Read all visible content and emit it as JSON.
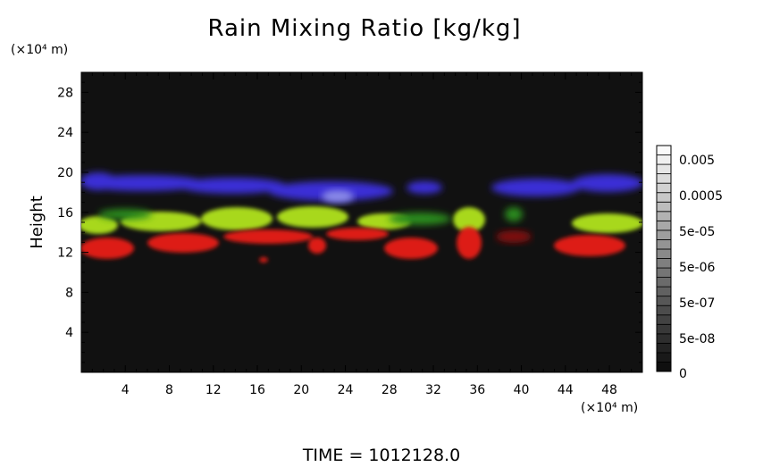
{
  "chart_data": {
    "type": "heatmap",
    "title": "Rain Mixing Ratio [kg/kg]",
    "ylabel": "Height",
    "xunit": "(×10⁴ m)",
    "yunit": "(×10⁴ m)",
    "xlim": [
      0,
      51
    ],
    "ylim": [
      0,
      30
    ],
    "xticks": [
      4,
      8,
      12,
      16,
      20,
      24,
      28,
      32,
      36,
      40,
      44,
      48
    ],
    "yticks": [
      4,
      8,
      12,
      16,
      20,
      24,
      28
    ],
    "colorbar": {
      "labels": [
        "0.005",
        "0.0005",
        "5e-05",
        "5e-06",
        "5e-07",
        "5e-08",
        "0"
      ],
      "levels": 24,
      "colors": {
        "bottom": "#000000",
        "top": "#ffffff"
      }
    },
    "background_color": "#111111",
    "layers": [
      {
        "color": "#3a30d8",
        "y_range": [
          17,
          20
        ]
      },
      {
        "color": "#b8e010",
        "y_range": [
          13.5,
          16.5
        ]
      },
      {
        "color": "#e01818",
        "y_range": [
          11,
          14
        ]
      }
    ]
  },
  "footer": {
    "time": "TIME  =  1012128.0"
  }
}
